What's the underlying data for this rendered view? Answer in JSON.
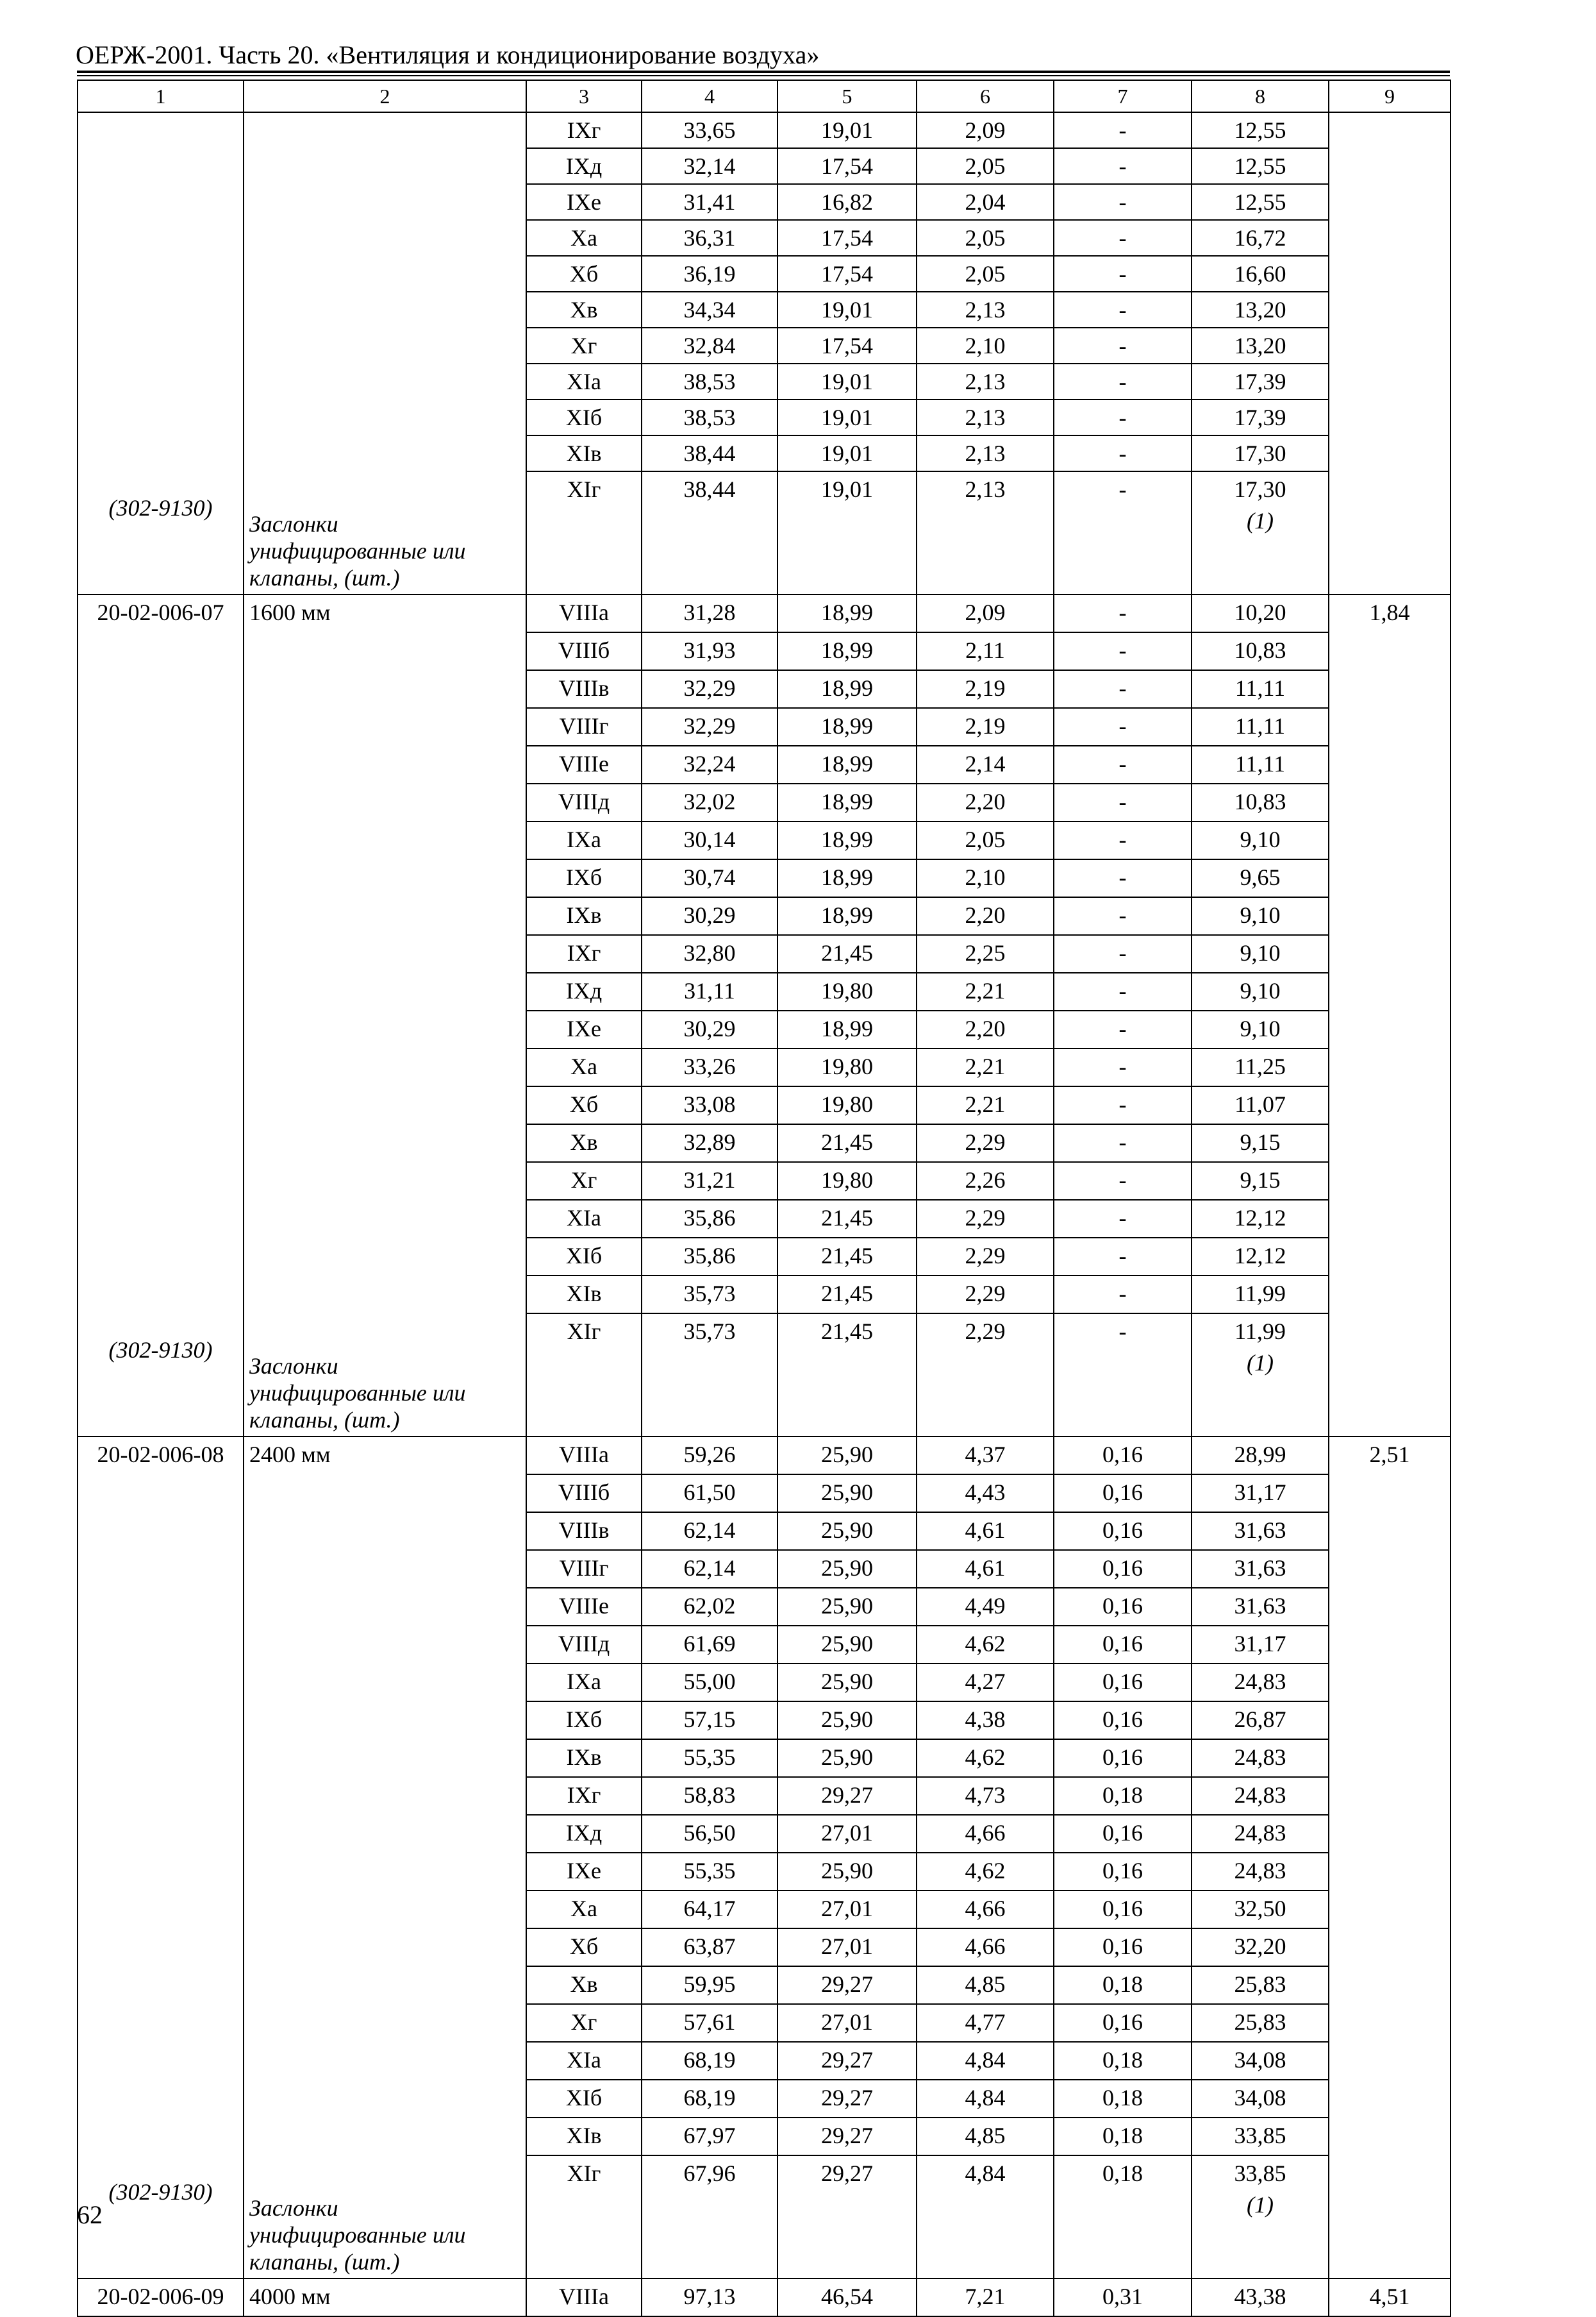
{
  "header": {
    "title": "ОЕРЖ-2001. Часть 20. «Вентиляция и кондиционирование воздуха»"
  },
  "table": {
    "column_numbers": [
      "1",
      "2",
      "3",
      "4",
      "5",
      "6",
      "7",
      "8",
      "9"
    ],
    "sections": [
      {
        "code": "",
        "name": "",
        "col9": "",
        "rows": [
          [
            "IXг",
            "33,65",
            "19,01",
            "2,09",
            "-",
            "12,55"
          ],
          [
            "IXд",
            "32,14",
            "17,54",
            "2,05",
            "-",
            "12,55"
          ],
          [
            "IXе",
            "31,41",
            "16,82",
            "2,04",
            "-",
            "12,55"
          ],
          [
            "Xа",
            "36,31",
            "17,54",
            "2,05",
            "-",
            "16,72"
          ],
          [
            "Xб",
            "36,19",
            "17,54",
            "2,05",
            "-",
            "16,60"
          ],
          [
            "Xв",
            "34,34",
            "19,01",
            "2,13",
            "-",
            "13,20"
          ],
          [
            "Xг",
            "32,84",
            "17,54",
            "2,10",
            "-",
            "13,20"
          ],
          [
            "XIа",
            "38,53",
            "19,01",
            "2,13",
            "-",
            "17,39"
          ],
          [
            "XIб",
            "38,53",
            "19,01",
            "2,13",
            "-",
            "17,39"
          ],
          [
            "XIв",
            "38,44",
            "19,01",
            "2,13",
            "-",
            "17,30"
          ],
          [
            "XIг",
            "38,44",
            "19,01",
            "2,13",
            "-",
            "17,30"
          ]
        ],
        "note": {
          "code": "(302-9130)",
          "lines": [
            "Заслонки",
            "унифицированные или",
            "клапаны, (шт.)"
          ],
          "quantity": "(1)"
        }
      },
      {
        "code": "20-02-006-07",
        "name": "1600 мм",
        "col9": "1,84",
        "rows": [
          [
            "VIIIа",
            "31,28",
            "18,99",
            "2,09",
            "-",
            "10,20"
          ],
          [
            "VIIIб",
            "31,93",
            "18,99",
            "2,11",
            "-",
            "10,83"
          ],
          [
            "VIIIв",
            "32,29",
            "18,99",
            "2,19",
            "-",
            "11,11"
          ],
          [
            "VIIIг",
            "32,29",
            "18,99",
            "2,19",
            "-",
            "11,11"
          ],
          [
            "VIIIе",
            "32,24",
            "18,99",
            "2,14",
            "-",
            "11,11"
          ],
          [
            "VIIIд",
            "32,02",
            "18,99",
            "2,20",
            "-",
            "10,83"
          ],
          [
            "IXа",
            "30,14",
            "18,99",
            "2,05",
            "-",
            "9,10"
          ],
          [
            "IXб",
            "30,74",
            "18,99",
            "2,10",
            "-",
            "9,65"
          ],
          [
            "IXв",
            "30,29",
            "18,99",
            "2,20",
            "-",
            "9,10"
          ],
          [
            "IXг",
            "32,80",
            "21,45",
            "2,25",
            "-",
            "9,10"
          ],
          [
            "IXд",
            "31,11",
            "19,80",
            "2,21",
            "-",
            "9,10"
          ],
          [
            "IXе",
            "30,29",
            "18,99",
            "2,20",
            "-",
            "9,10"
          ],
          [
            "Xа",
            "33,26",
            "19,80",
            "2,21",
            "-",
            "11,25"
          ],
          [
            "Xб",
            "33,08",
            "19,80",
            "2,21",
            "-",
            "11,07"
          ],
          [
            "Xв",
            "32,89",
            "21,45",
            "2,29",
            "-",
            "9,15"
          ],
          [
            "Xг",
            "31,21",
            "19,80",
            "2,26",
            "-",
            "9,15"
          ],
          [
            "XIа",
            "35,86",
            "21,45",
            "2,29",
            "-",
            "12,12"
          ],
          [
            "XIб",
            "35,86",
            "21,45",
            "2,29",
            "-",
            "12,12"
          ],
          [
            "XIв",
            "35,73",
            "21,45",
            "2,29",
            "-",
            "11,99"
          ],
          [
            "XIг",
            "35,73",
            "21,45",
            "2,29",
            "-",
            "11,99"
          ]
        ],
        "note": {
          "code": "(302-9130)",
          "lines": [
            "Заслонки",
            "унифицированные или",
            "клапаны, (шт.)"
          ],
          "quantity": "(1)"
        }
      },
      {
        "code": "20-02-006-08",
        "name": "2400 мм",
        "col9": "2,51",
        "rows": [
          [
            "VIIIа",
            "59,26",
            "25,90",
            "4,37",
            "0,16",
            "28,99"
          ],
          [
            "VIIIб",
            "61,50",
            "25,90",
            "4,43",
            "0,16",
            "31,17"
          ],
          [
            "VIIIв",
            "62,14",
            "25,90",
            "4,61",
            "0,16",
            "31,63"
          ],
          [
            "VIIIг",
            "62,14",
            "25,90",
            "4,61",
            "0,16",
            "31,63"
          ],
          [
            "VIIIе",
            "62,02",
            "25,90",
            "4,49",
            "0,16",
            "31,63"
          ],
          [
            "VIIIд",
            "61,69",
            "25,90",
            "4,62",
            "0,16",
            "31,17"
          ],
          [
            "IXа",
            "55,00",
            "25,90",
            "4,27",
            "0,16",
            "24,83"
          ],
          [
            "IXб",
            "57,15",
            "25,90",
            "4,38",
            "0,16",
            "26,87"
          ],
          [
            "IXв",
            "55,35",
            "25,90",
            "4,62",
            "0,16",
            "24,83"
          ],
          [
            "IXг",
            "58,83",
            "29,27",
            "4,73",
            "0,18",
            "24,83"
          ],
          [
            "IXд",
            "56,50",
            "27,01",
            "4,66",
            "0,16",
            "24,83"
          ],
          [
            "IXе",
            "55,35",
            "25,90",
            "4,62",
            "0,16",
            "24,83"
          ],
          [
            "Xа",
            "64,17",
            "27,01",
            "4,66",
            "0,16",
            "32,50"
          ],
          [
            "Xб",
            "63,87",
            "27,01",
            "4,66",
            "0,16",
            "32,20"
          ],
          [
            "Xв",
            "59,95",
            "29,27",
            "4,85",
            "0,18",
            "25,83"
          ],
          [
            "Xг",
            "57,61",
            "27,01",
            "4,77",
            "0,16",
            "25,83"
          ],
          [
            "XIа",
            "68,19",
            "29,27",
            "4,84",
            "0,18",
            "34,08"
          ],
          [
            "XIб",
            "68,19",
            "29,27",
            "4,84",
            "0,18",
            "34,08"
          ],
          [
            "XIв",
            "67,97",
            "29,27",
            "4,85",
            "0,18",
            "33,85"
          ],
          [
            "XIг",
            "67,96",
            "29,27",
            "4,84",
            "0,18",
            "33,85"
          ]
        ],
        "note": {
          "code": "(302-9130)",
          "lines": [
            "Заслонки",
            "унифицированные или",
            "клапаны, (шт.)"
          ],
          "quantity": "(1)"
        }
      },
      {
        "code": "20-02-006-09",
        "name": "4000 мм",
        "col9": "4,51",
        "rows": [
          [
            "VIIIа",
            "97,13",
            "46,54",
            "7,21",
            "0,31",
            "43,38"
          ]
        ]
      }
    ]
  },
  "footer": {
    "page_number": "62"
  }
}
